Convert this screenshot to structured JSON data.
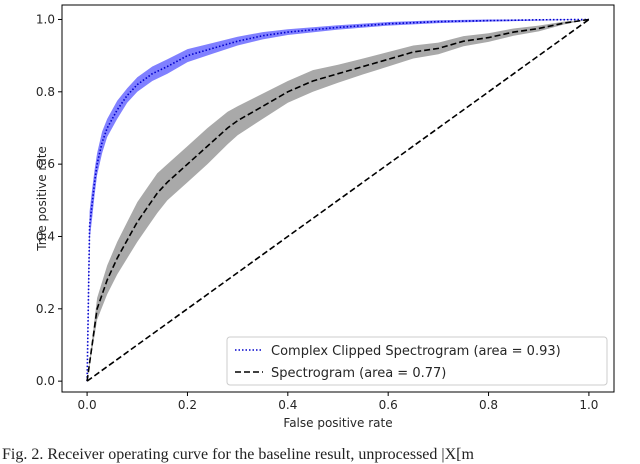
{
  "chart_data": {
    "type": "line",
    "xlabel": "False positive rate",
    "ylabel": "True positive rate",
    "xlim": [
      -0.05,
      1.05
    ],
    "ylim": [
      -0.03,
      1.04
    ],
    "xticks": [
      "0.0",
      "0.2",
      "0.4",
      "0.6",
      "0.8",
      "1.0"
    ],
    "yticks": [
      "0.0",
      "0.2",
      "0.4",
      "0.6",
      "0.8",
      "1.0"
    ],
    "grid": false,
    "legend_position": "lower-right",
    "series": [
      {
        "name": "Complex Clipped Spectrogram (area = 0.93)",
        "color": "#0000cc",
        "band_color": "#8080ff",
        "style": "dotted",
        "x": [
          0.0,
          0.005,
          0.01,
          0.015,
          0.02,
          0.03,
          0.04,
          0.06,
          0.08,
          0.1,
          0.13,
          0.16,
          0.2,
          0.25,
          0.3,
          0.35,
          0.4,
          0.5,
          0.6,
          0.7,
          0.8,
          0.9,
          1.0
        ],
        "y": [
          0.0,
          0.43,
          0.49,
          0.55,
          0.6,
          0.66,
          0.7,
          0.75,
          0.79,
          0.82,
          0.85,
          0.87,
          0.9,
          0.92,
          0.94,
          0.955,
          0.965,
          0.978,
          0.988,
          0.994,
          0.997,
          0.999,
          1.0
        ],
        "band_halfwidth": [
          0.0,
          0.04,
          0.04,
          0.035,
          0.03,
          0.03,
          0.025,
          0.025,
          0.02,
          0.02,
          0.02,
          0.02,
          0.018,
          0.015,
          0.012,
          0.01,
          0.008,
          0.006,
          0.005,
          0.004,
          0.003,
          0.002,
          0.0
        ]
      },
      {
        "name": "Spectrogram (area = 0.77)",
        "color": "#000000",
        "band_color": "#a9a9a9",
        "style": "dashed",
        "x": [
          0.0,
          0.02,
          0.04,
          0.06,
          0.08,
          0.1,
          0.12,
          0.14,
          0.16,
          0.2,
          0.24,
          0.28,
          0.3,
          0.35,
          0.4,
          0.45,
          0.5,
          0.55,
          0.6,
          0.65,
          0.7,
          0.75,
          0.8,
          0.85,
          0.9,
          0.95,
          1.0
        ],
        "y": [
          0.0,
          0.2,
          0.28,
          0.34,
          0.39,
          0.44,
          0.48,
          0.52,
          0.55,
          0.6,
          0.65,
          0.7,
          0.72,
          0.76,
          0.8,
          0.83,
          0.85,
          0.87,
          0.89,
          0.91,
          0.92,
          0.94,
          0.95,
          0.965,
          0.975,
          0.99,
          1.0
        ],
        "band_halfwidth": [
          0.0,
          0.03,
          0.04,
          0.045,
          0.05,
          0.055,
          0.055,
          0.055,
          0.05,
          0.05,
          0.05,
          0.045,
          0.04,
          0.035,
          0.03,
          0.03,
          0.025,
          0.022,
          0.02,
          0.018,
          0.016,
          0.014,
          0.012,
          0.01,
          0.008,
          0.004,
          0.0
        ]
      },
      {
        "name": "",
        "color": "#000000",
        "style": "dashed",
        "x": [
          0.0,
          1.0
        ],
        "y": [
          0.0,
          1.0
        ]
      }
    ]
  },
  "caption": "Fig. 2.   Receiver operating curve for the baseline result, unprocessed |X[m"
}
